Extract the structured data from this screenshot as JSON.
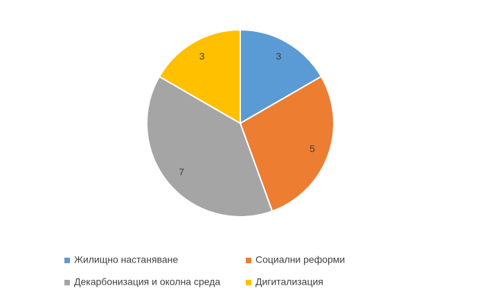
{
  "chart_data": {
    "type": "pie",
    "series": [
      {
        "name": "Жилищно настаняване",
        "color": "#5b9bd5",
        "values": [
          3
        ]
      },
      {
        "name": "Социални реформи",
        "color": "#ed7d31",
        "values": [
          5
        ]
      },
      {
        "name": "Декарбонизация и околна среда",
        "color": "#a5a5a5",
        "values": [
          7
        ]
      },
      {
        "name": "Дигитализация",
        "color": "#ffc000",
        "values": [
          3
        ]
      }
    ],
    "legend": "bottom"
  }
}
